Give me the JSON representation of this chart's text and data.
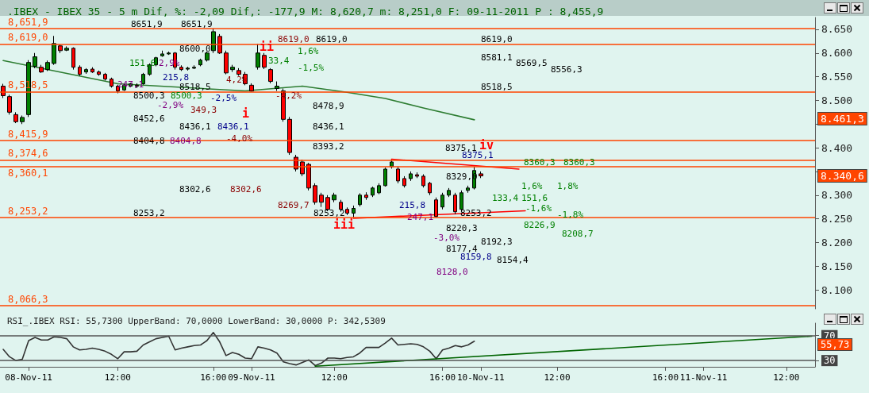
{
  "chart_data": [
    {
      "type": "candlestick",
      "title": ".IBEX - IBEX 35 - 5 m Dif, %: -2,09 Dif,: -177,9 M: 8,620,7 m: 8,251,0 F: 09-11-2011 P : 8,455,9",
      "categories": [
        null,
        null,
        null,
        null,
        null,
        null,
        null,
        null,
        null,
        null,
        null,
        null,
        null,
        null,
        null,
        null,
        null,
        null,
        null,
        null,
        null,
        null,
        null,
        null,
        null,
        null,
        null,
        null,
        null,
        null,
        null,
        null,
        null,
        null,
        null,
        null,
        null,
        null,
        null,
        null,
        null,
        null,
        null,
        null,
        null,
        null,
        null,
        null,
        null,
        null,
        null,
        null,
        null,
        null,
        null,
        null,
        null,
        null,
        null,
        null,
        null,
        null,
        null,
        null,
        null,
        null,
        null,
        null,
        null,
        null,
        null,
        null,
        null,
        null,
        null,
        null,
        null,
        null,
        null,
        null,
        null,
        null,
        null,
        null,
        null,
        null,
        null,
        null,
        null,
        null,
        null,
        null,
        null,
        null,
        null,
        null,
        null,
        null,
        null,
        null,
        null,
        null,
        null,
        null,
        null,
        null,
        null,
        null,
        null,
        null,
        null,
        null,
        null,
        null,
        null,
        null,
        null,
        null,
        null,
        null,
        null,
        null,
        null,
        null,
        null,
        null,
        null,
        null
      ],
      "series": [
        {
          "ohlc": [
            [
              8530,
              8535,
              8505,
              8510
            ],
            [
              8508,
              8512,
              8470,
              8475
            ],
            [
              8470,
              8475,
              8452,
              8455
            ],
            [
              8455,
              8468,
              8450,
              8464
            ],
            [
              8470,
              8585,
              8465,
              8580
            ],
            [
              8572,
              8600,
              8568,
              8592
            ],
            [
              8570,
              8575,
              8558,
              8560
            ],
            [
              8565,
              8584,
              8562,
              8580
            ],
            [
              8578,
              8636,
              8575,
              8620
            ],
            [
              8615,
              8618,
              8600,
              8605
            ],
            [
              8606,
              8614,
              8604,
              8610
            ],
            [
              8610,
              8612,
              8565,
              8570
            ],
            [
              8570,
              8574,
              8552,
              8555
            ],
            [
              8560,
              8568,
              8556,
              8565
            ],
            [
              8566,
              8570,
              8558,
              8560
            ],
            [
              8560,
              8563,
              8552,
              8555
            ],
            [
              8555,
              8558,
              8542,
              8545
            ],
            [
              8545,
              8548,
              8527,
              8530
            ],
            [
              8530,
              8533,
              8515,
              8520
            ],
            [
              8522,
              8536,
              8520,
              8532
            ],
            [
              8530,
              8537,
              8528,
              8535
            ],
            [
              8532,
              8536,
              8526,
              8530
            ],
            [
              8535,
              8558,
              8533,
              8555
            ],
            [
              8555,
              8578,
              8552,
              8575
            ],
            [
              8575,
              8592,
              8572,
              8590
            ],
            [
              8594,
              8605,
              8592,
              8598
            ],
            [
              8598,
              8603,
              8596,
              8600
            ],
            [
              8600,
              8602,
              8565,
              8570
            ],
            [
              8570,
              8574,
              8562,
              8565
            ],
            [
              8566,
              8571,
              8563,
              8568
            ],
            [
              8568,
              8574,
              8566,
              8570
            ],
            [
              8575,
              8588,
              8572,
              8585
            ],
            [
              8585,
              8603,
              8582,
              8600
            ],
            [
              8605,
              8651.9,
              8600,
              8645
            ],
            [
              8635,
              8640,
              8598,
              8600
            ],
            [
              8600,
              8605,
              8555,
              8558
            ],
            [
              8565,
              8575,
              8560,
              8570
            ],
            [
              8563,
              8568,
              8552,
              8555
            ],
            [
              8555,
              8560,
              8532,
              8535
            ],
            [
              8532,
              8536,
              8518.5,
              8520
            ],
            [
              8570,
              8619,
              8565,
              8600
            ],
            [
              8595,
              8600,
              8566,
              8570
            ],
            [
              8565,
              8568,
              8536,
              8540
            ],
            [
              8525,
              8540,
              8520,
              8530
            ],
            [
              8520,
              8525,
              8455,
              8460
            ],
            [
              8460,
              8465,
              8385,
              8390
            ],
            [
              8380,
              8385,
              8350,
              8355
            ],
            [
              8370,
              8375,
              8340,
              8345
            ],
            [
              8365,
              8368,
              8310,
              8315
            ],
            [
              8320,
              8325,
              8280,
              8285
            ],
            [
              8300,
              8305,
              8275,
              8285
            ],
            [
              8295,
              8300,
              8266,
              8270
            ],
            [
              8290,
              8305,
              8285,
              8300
            ],
            [
              8285,
              8290,
              8265,
              8270
            ],
            [
              8270,
              8274,
              8258,
              8262
            ],
            [
              8262,
              8278,
              8253.2,
              8272
            ],
            [
              8280,
              8304,
              8276,
              8300
            ],
            [
              8300,
              8306,
              8290,
              8295
            ],
            [
              8300,
              8318,
              8296,
              8315
            ],
            [
              8305,
              8325,
              8302,
              8320
            ],
            [
              8320,
              8358,
              8318,
              8355
            ],
            [
              8360,
              8375,
              8356,
              8370
            ],
            [
              8355,
              8360,
              8325,
              8330
            ],
            [
              8335,
              8340,
              8316,
              8320
            ],
            [
              8335,
              8350,
              8330,
              8345
            ],
            [
              8343,
              8348,
              8336,
              8340
            ],
            [
              8340,
              8344,
              8316,
              8320
            ],
            [
              8325,
              8328,
              8300,
              8305
            ],
            [
              8290,
              8295,
              8253,
              8255
            ],
            [
              8275,
              8305,
              8270,
              8300
            ],
            [
              8300,
              8315,
              8296,
              8310
            ],
            [
              8300,
              8305,
              8260,
              8265
            ],
            [
              8270,
              8310,
              8266,
              8305
            ],
            [
              8310,
              8320,
              8305,
              8315
            ],
            [
              8315,
              8360,
              8312,
              8352
            ],
            [
              8345,
              8350,
              8336,
              8340.6
            ],
            null,
            null,
            null,
            null,
            null,
            null,
            null,
            null,
            null,
            null,
            null,
            null,
            null,
            null,
            null,
            null,
            null,
            null,
            null,
            null,
            null,
            null,
            null,
            null,
            null,
            null,
            null,
            null,
            null,
            null,
            null,
            null,
            null,
            null,
            null,
            null,
            null,
            null,
            null,
            null,
            null,
            null,
            null,
            null,
            null,
            null,
            null,
            null,
            null,
            null,
            null,
            null
          ],
          "colors": [
            "#ff0000",
            "#ff0000",
            "#ff0000",
            "#008000",
            "#008000",
            "#008000",
            "#ff0000",
            "#008000",
            "#008000",
            "#ff0000",
            "#008000",
            "#ff0000",
            "#ff0000",
            "#008000",
            "#ff0000",
            "#ff0000",
            "#ff0000",
            "#ff0000",
            "#ff0000",
            "#008000",
            "#008000",
            "#ff0000",
            "#008000",
            "#008000",
            "#008000",
            "#008000",
            "#008000",
            "#ff0000",
            "#ff0000",
            "#008000",
            "#008000",
            "#008000",
            "#008000",
            "#008000",
            "#ff0000",
            "#ff0000",
            "#008000",
            "#ff0000",
            "#ff0000",
            "#ff0000",
            "#008000",
            "#ff0000",
            "#ff0000",
            "#008000",
            "#ff0000",
            "#ff0000",
            "#ff0000",
            "#ff0000",
            "#ff0000",
            "#ff0000",
            "#ff0000",
            "#ff0000",
            "#008000",
            "#ff0000",
            "#ff0000",
            "#008000",
            "#008000",
            "#ff0000",
            "#008000",
            "#008000",
            "#008000",
            "#008000",
            "#ff0000",
            "#ff0000",
            "#008000",
            "#ff0000",
            "#ff0000",
            "#ff0000",
            "#ff0000",
            "#008000",
            "#008000",
            "#ff0000",
            "#008000",
            "#008000",
            "#008000",
            "#ff0000",
            null,
            null,
            null,
            null,
            null,
            null,
            null,
            null,
            null,
            null,
            null,
            null,
            null,
            null,
            null,
            null,
            null,
            null,
            null,
            null,
            null,
            null,
            null,
            null,
            null,
            null,
            null,
            null,
            null,
            null,
            null,
            null,
            null,
            null,
            null,
            null,
            null,
            null,
            null,
            null,
            null,
            null,
            null,
            null,
            null,
            null,
            null,
            null,
            null,
            null,
            null,
            null
          ]
        },
        {
          "type": "line",
          "color": "#2e7d32",
          "values": [
            8584,
            null,
            null,
            null,
            null,
            null,
            null,
            null,
            null,
            null,
            null,
            null,
            null,
            null,
            null,
            null,
            null,
            null,
            8535,
            null,
            null,
            null,
            null,
            null,
            null,
            null,
            null,
            null,
            null,
            null,
            null,
            null,
            null,
            null,
            null,
            null,
            null,
            null,
            8520,
            null,
            null,
            null,
            null,
            null,
            null,
            null,
            null,
            8530,
            null,
            null,
            null,
            null,
            null,
            null,
            8517,
            null,
            null,
            null,
            null,
            null,
            8504,
            null,
            null,
            null,
            null,
            null,
            8484,
            null,
            null,
            null,
            null,
            null,
            null,
            null,
            8459,
            null,
            null,
            null,
            null,
            null,
            null,
            null,
            null,
            null,
            null,
            null,
            null,
            null,
            null,
            null,
            null,
            null,
            null,
            null,
            null,
            null,
            null,
            null,
            null,
            null,
            null,
            null,
            null,
            null,
            null,
            null,
            null,
            null,
            null,
            null,
            null,
            null,
            null,
            null,
            null,
            null,
            null,
            null,
            null,
            null,
            null,
            null,
            null,
            null,
            null,
            null,
            null,
            null
          ]
        },
        {
          "type": "line",
          "color": "#ff0000",
          "values": [
            null,
            null,
            null,
            null,
            null,
            null,
            null,
            null,
            null,
            null,
            null,
            null,
            null,
            null,
            null,
            null,
            null,
            null,
            null,
            null,
            null,
            null,
            null,
            null,
            null,
            null,
            null,
            null,
            null,
            null,
            null,
            null,
            null,
            null,
            null,
            null,
            null,
            null,
            null,
            null,
            null,
            null,
            null,
            null,
            null,
            null,
            null,
            null,
            null,
            null,
            null,
            null,
            null,
            null,
            null,
            null,
            null,
            null,
            null,
            null,
            null,
            8376,
            null,
            null,
            null,
            null,
            null,
            null,
            null,
            null,
            null,
            null,
            null,
            null,
            null,
            null,
            null,
            null,
            null,
            null,
            null,
            8355,
            null,
            null,
            null,
            null,
            null,
            null,
            null,
            null,
            null,
            null,
            null,
            null,
            null,
            null,
            null,
            null,
            null,
            null,
            null,
            null,
            null,
            null,
            null,
            null,
            null,
            null,
            null,
            null,
            null,
            null,
            null,
            null,
            null,
            null,
            null,
            null,
            null,
            null,
            null,
            null,
            null,
            null,
            null,
            null,
            null,
            null
          ]
        },
        {
          "type": "line",
          "color": "#ff0000",
          "values": [
            null,
            null,
            null,
            null,
            null,
            null,
            null,
            null,
            null,
            null,
            null,
            null,
            null,
            null,
            null,
            null,
            null,
            null,
            null,
            null,
            null,
            null,
            null,
            null,
            null,
            null,
            null,
            null,
            null,
            null,
            null,
            null,
            null,
            null,
            null,
            null,
            null,
            null,
            null,
            null,
            null,
            null,
            null,
            null,
            null,
            null,
            null,
            null,
            null,
            null,
            null,
            null,
            null,
            null,
            null,
            8251,
            null,
            null,
            null,
            null,
            null,
            null,
            null,
            null,
            null,
            null,
            null,
            null,
            null,
            null,
            null,
            null,
            null,
            null,
            null,
            null,
            null,
            null,
            null,
            null,
            null,
            null,
            8267,
            null,
            null,
            null,
            null,
            null,
            null,
            null,
            null,
            null,
            null,
            null,
            null,
            null,
            null,
            null,
            null,
            null,
            null,
            null,
            null,
            null,
            null,
            null,
            null,
            null,
            null,
            null,
            null,
            null,
            null,
            null,
            null,
            null,
            null,
            null,
            null,
            null,
            null,
            null,
            null,
            null,
            null,
            null,
            null,
            null
          ]
        }
      ],
      "ylim": [
        8060,
        8675
      ],
      "yticks": [
        {
          "value": 8100,
          "label": "8.100"
        },
        {
          "value": 8150,
          "label": "8.150"
        },
        {
          "value": 8200,
          "label": "8.200"
        },
        {
          "value": 8250,
          "label": "8.250"
        },
        {
          "value": 8300,
          "label": "8.300"
        },
        {
          "value": 8350,
          "label": null
        },
        {
          "value": 8400,
          "label": "8.400"
        },
        {
          "value": 8450,
          "label": null
        },
        {
          "value": 8500,
          "label": "8.500"
        },
        {
          "value": 8550,
          "label": "8.550"
        },
        {
          "value": 8600,
          "label": "8.600"
        },
        {
          "value": 8650,
          "label": "8.650"
        }
      ],
      "tick_labels": "y",
      "ref_lines": [
        {
          "axis": "y",
          "value": 8651.9,
          "label": "8,651,9",
          "color": "#ff4500"
        },
        {
          "axis": "y",
          "value": 8619.0,
          "label": "8,619,0",
          "color": "#ff4500"
        },
        {
          "axis": "y",
          "value": 8518.5,
          "label": "8,518,5",
          "color": "#ff4500"
        },
        {
          "axis": "y",
          "value": 8415.9,
          "label": "8,415,9",
          "color": "#ff4500"
        },
        {
          "axis": "y",
          "value": 8374.6,
          "label": "8,374,6",
          "color": "#ff4500"
        },
        {
          "axis": "y",
          "value": 8360.1,
          "label": "8,360,1",
          "color": "#ff4500"
        },
        {
          "axis": "y",
          "value": 8253.2,
          "label": "8,253,2",
          "color": "#ff4500"
        },
        {
          "axis": "y",
          "value": 8066.3,
          "label": "8,066,3",
          "color": "#ff4500"
        }
      ],
      "annotations": [
        "8651,9",
        "8651,9",
        "8600,0",
        "8518,5",
        "8500,3",
        "8452,6",
        "8436,1",
        "8404,8",
        "8302,6",
        "8253,2",
        "8619,0",
        "8302,6",
        "8269,7",
        "349,3",
        "-4,0%",
        "4,2%",
        "-4,2%",
        "8500,3",
        "151,6",
        "-2,9%",
        "2,9%",
        "247,1",
        "8404,8",
        "215,8",
        "-2,5%",
        "8436,1",
        "1,6%",
        "-1,5%",
        "33,4",
        "8619,0",
        "8478,9",
        "8436,1",
        "8393,2",
        "8253,2",
        "8619,0",
        "8581,1",
        "8569,5",
        "8556,3",
        "8518,5",
        "i",
        "ii",
        "iii",
        "iv",
        "8375,1",
        "8375,1",
        "8329,0",
        "133,4",
        "1,6%",
        "151,6",
        "-1,6%",
        "1,8%",
        "-1,8%",
        "8360,3",
        "8360,3",
        "8226,9",
        "8208,7",
        "8192,3",
        "8220,3",
        "-3,0%",
        "8177,4",
        "8159,8",
        "8154,4",
        "8128,0",
        "247,1",
        "215,8",
        "8253,2",
        "8.461,3",
        "8.340,6"
      ]
    },
    {
      "type": "line",
      "title": "RSI_.IBEX RSI: 55,7300 UpperBand: 70,0000 LowerBand: 30,0000 P: 342,5309",
      "categories": [
        null,
        null,
        null,
        null,
        "08-Nov-11",
        null,
        null,
        null,
        null,
        null,
        null,
        null,
        null,
        null,
        null,
        null,
        null,
        null,
        "12:00",
        null,
        null,
        null,
        null,
        null,
        null,
        null,
        null,
        null,
        null,
        null,
        null,
        null,
        null,
        "16:00",
        null,
        null,
        null,
        null,
        null,
        "09-Nov-11",
        null,
        null,
        null,
        null,
        null,
        null,
        null,
        null,
        null,
        null,
        null,
        null,
        "12:00",
        null,
        null,
        null,
        null,
        null,
        null,
        null,
        null,
        null,
        null,
        null,
        null,
        null,
        null,
        null,
        null,
        "16:00",
        null,
        null,
        null,
        null,
        null,
        "10-Nov-11",
        null,
        null,
        null,
        null,
        null,
        null,
        null,
        null,
        null,
        null,
        null,
        "12:00",
        null,
        null,
        null,
        null,
        null,
        null,
        null,
        null,
        null,
        null,
        null,
        null,
        null,
        null,
        null,
        null,
        "16:00",
        null,
        null,
        null,
        null,
        null,
        "11-Nov-11",
        null,
        null,
        null,
        null,
        null,
        null,
        null,
        null,
        null,
        null,
        null,
        null,
        "12:00",
        null,
        null,
        null,
        null
      ],
      "series": [
        {
          "color": "#333333",
          "values": [
            48,
            36,
            30,
            32,
            62,
            67,
            63,
            63,
            68,
            67,
            65,
            52,
            47,
            48,
            50,
            48,
            45,
            40,
            33,
            44,
            44,
            45,
            55,
            60,
            65,
            67,
            69,
            47,
            50,
            52,
            54,
            55,
            62,
            75,
            60,
            38,
            43,
            40,
            34,
            33,
            52,
            50,
            47,
            42,
            28,
            25,
            23,
            27,
            31,
            22,
            26,
            34,
            34,
            33,
            35,
            36,
            42,
            51,
            51,
            51,
            58,
            66,
            55,
            56,
            57,
            56,
            52,
            45,
            33,
            47,
            50,
            54,
            52,
            55,
            61,
            null,
            null,
            null,
            null,
            null,
            null,
            null,
            null,
            null,
            null,
            null,
            null,
            null,
            null,
            null,
            null,
            null,
            null,
            null,
            null,
            null,
            null,
            null,
            null,
            null,
            null,
            null,
            null,
            null,
            null,
            null,
            null,
            null,
            null,
            null,
            null,
            null,
            null,
            null,
            null,
            null,
            null,
            null,
            null,
            null,
            null,
            null,
            null,
            null,
            null,
            null,
            null,
            null
          ]
        },
        {
          "color": "#006400",
          "values": [
            null,
            null,
            null,
            null,
            null,
            null,
            null,
            null,
            null,
            null,
            null,
            null,
            null,
            null,
            null,
            null,
            null,
            null,
            null,
            null,
            null,
            null,
            null,
            null,
            null,
            null,
            null,
            null,
            null,
            null,
            null,
            null,
            null,
            null,
            null,
            null,
            null,
            null,
            null,
            null,
            null,
            null,
            null,
            null,
            null,
            null,
            null,
            null,
            null,
            21,
            null,
            null,
            null,
            null,
            null,
            null,
            null,
            null,
            null,
            null,
            null,
            null,
            null,
            null,
            null,
            null,
            null,
            null,
            null,
            null,
            null,
            null,
            null,
            null,
            null,
            null,
            null,
            null,
            null,
            null,
            null,
            null,
            null,
            null,
            null,
            null,
            null,
            null,
            null,
            null,
            null,
            null,
            null,
            null,
            null,
            null,
            null,
            null,
            null,
            null,
            null,
            null,
            null,
            null,
            null,
            null,
            null,
            null,
            null,
            null,
            null,
            null,
            null,
            null,
            null,
            null,
            null,
            null,
            null,
            null,
            null,
            null,
            null,
            null,
            null,
            null,
            null,
            69
          ]
        }
      ],
      "ylim": [
        20,
        90
      ],
      "yticks": [
        30,
        70
      ],
      "ref_lines": [
        {
          "axis": "y",
          "value": 70,
          "color": "#555555"
        },
        {
          "axis": "y",
          "value": 30,
          "color": "#555555"
        }
      ],
      "annotations": [
        "55,73"
      ]
    }
  ]
}
